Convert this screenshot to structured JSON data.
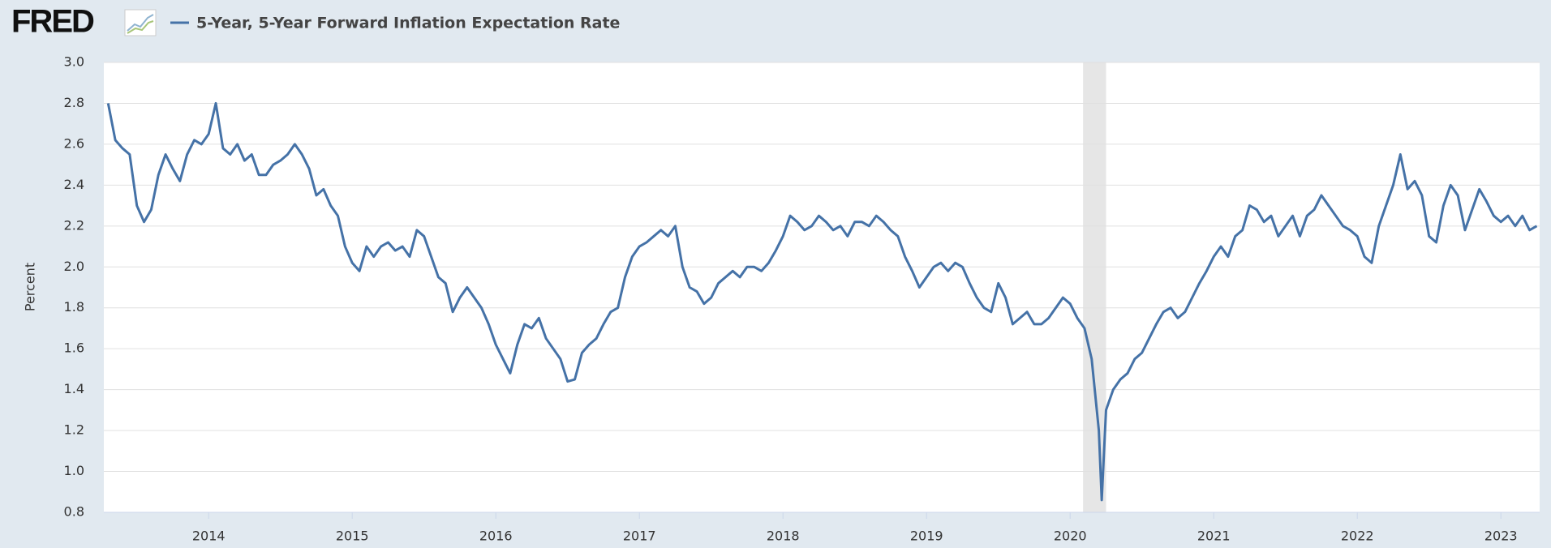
{
  "chart_data": {
    "type": "line",
    "logo": "FRED",
    "title": "5-Year, 5-Year Forward Inflation Expectation Rate",
    "ylabel": "Percent",
    "x": [
      2013.3,
      2013.35,
      2013.4,
      2013.45,
      2013.5,
      2013.55,
      2013.6,
      2013.65,
      2013.7,
      2013.75,
      2013.8,
      2013.85,
      2013.9,
      2013.95,
      2014.0,
      2014.05,
      2014.1,
      2014.15,
      2014.2,
      2014.25,
      2014.3,
      2014.35,
      2014.4,
      2014.45,
      2014.5,
      2014.55,
      2014.6,
      2014.65,
      2014.7,
      2014.75,
      2014.8,
      2014.85,
      2014.9,
      2014.95,
      2015.0,
      2015.05,
      2015.1,
      2015.15,
      2015.2,
      2015.25,
      2015.3,
      2015.35,
      2015.4,
      2015.45,
      2015.5,
      2015.55,
      2015.6,
      2015.65,
      2015.7,
      2015.75,
      2015.8,
      2015.85,
      2015.9,
      2015.95,
      2016.0,
      2016.05,
      2016.1,
      2016.15,
      2016.2,
      2016.25,
      2016.3,
      2016.35,
      2016.4,
      2016.45,
      2016.5,
      2016.55,
      2016.6,
      2016.65,
      2016.7,
      2016.75,
      2016.8,
      2016.85,
      2016.9,
      2016.95,
      2017.0,
      2017.05,
      2017.1,
      2017.15,
      2017.2,
      2017.25,
      2017.3,
      2017.35,
      2017.4,
      2017.45,
      2017.5,
      2017.55,
      2017.6,
      2017.65,
      2017.7,
      2017.75,
      2017.8,
      2017.85,
      2017.9,
      2017.95,
      2018.0,
      2018.05,
      2018.1,
      2018.15,
      2018.2,
      2018.25,
      2018.3,
      2018.35,
      2018.4,
      2018.45,
      2018.5,
      2018.55,
      2018.6,
      2018.65,
      2018.7,
      2018.75,
      2018.8,
      2018.85,
      2018.9,
      2018.95,
      2019.0,
      2019.05,
      2019.1,
      2019.15,
      2019.2,
      2019.25,
      2019.3,
      2019.35,
      2019.4,
      2019.45,
      2019.5,
      2019.55,
      2019.6,
      2019.65,
      2019.7,
      2019.75,
      2019.8,
      2019.85,
      2019.9,
      2019.95,
      2020.0,
      2020.05,
      2020.1,
      2020.15,
      2020.2,
      2020.22,
      2020.25,
      2020.3,
      2020.35,
      2020.4,
      2020.45,
      2020.5,
      2020.55,
      2020.6,
      2020.65,
      2020.7,
      2020.75,
      2020.8,
      2020.85,
      2020.9,
      2020.95,
      2021.0,
      2021.05,
      2021.1,
      2021.15,
      2021.2,
      2021.25,
      2021.3,
      2021.35,
      2021.4,
      2021.45,
      2021.5,
      2021.55,
      2021.6,
      2021.65,
      2021.7,
      2021.75,
      2021.8,
      2021.85,
      2021.9,
      2021.95,
      2022.0,
      2022.05,
      2022.1,
      2022.15,
      2022.2,
      2022.25,
      2022.3,
      2022.35,
      2022.4,
      2022.45,
      2022.5,
      2022.55,
      2022.6,
      2022.65,
      2022.7,
      2022.75,
      2022.8,
      2022.85,
      2022.9,
      2022.95,
      2023.0,
      2023.05,
      2023.1,
      2023.15,
      2023.2,
      2023.25
    ],
    "series": [
      {
        "name": "5-Year, 5-Year Forward Inflation Expectation Rate",
        "color": "#4572a7",
        "values": [
          2.8,
          2.62,
          2.58,
          2.55,
          2.3,
          2.22,
          2.28,
          2.45,
          2.55,
          2.48,
          2.42,
          2.55,
          2.62,
          2.6,
          2.65,
          2.8,
          2.58,
          2.55,
          2.6,
          2.52,
          2.55,
          2.45,
          2.45,
          2.5,
          2.52,
          2.55,
          2.6,
          2.55,
          2.48,
          2.35,
          2.38,
          2.3,
          2.25,
          2.1,
          2.02,
          1.98,
          2.1,
          2.05,
          2.1,
          2.12,
          2.08,
          2.1,
          2.05,
          2.18,
          2.15,
          2.05,
          1.95,
          1.92,
          1.78,
          1.85,
          1.9,
          1.85,
          1.8,
          1.72,
          1.62,
          1.55,
          1.48,
          1.62,
          1.72,
          1.7,
          1.75,
          1.65,
          1.6,
          1.55,
          1.44,
          1.45,
          1.58,
          1.62,
          1.65,
          1.72,
          1.78,
          1.8,
          1.95,
          2.05,
          2.1,
          2.12,
          2.15,
          2.18,
          2.15,
          2.2,
          2.0,
          1.9,
          1.88,
          1.82,
          1.85,
          1.92,
          1.95,
          1.98,
          1.95,
          2.0,
          2.0,
          1.98,
          2.02,
          2.08,
          2.15,
          2.25,
          2.22,
          2.18,
          2.2,
          2.25,
          2.22,
          2.18,
          2.2,
          2.15,
          2.22,
          2.22,
          2.2,
          2.25,
          2.22,
          2.18,
          2.15,
          2.05,
          1.98,
          1.9,
          1.95,
          2.0,
          2.02,
          1.98,
          2.02,
          2.0,
          1.92,
          1.85,
          1.8,
          1.78,
          1.92,
          1.85,
          1.72,
          1.75,
          1.78,
          1.72,
          1.72,
          1.75,
          1.8,
          1.85,
          1.82,
          1.75,
          1.7,
          1.55,
          1.2,
          0.86,
          1.3,
          1.4,
          1.45,
          1.48,
          1.55,
          1.58,
          1.65,
          1.72,
          1.78,
          1.8,
          1.75,
          1.78,
          1.85,
          1.92,
          1.98,
          2.05,
          2.1,
          2.05,
          2.15,
          2.18,
          2.3,
          2.28,
          2.22,
          2.25,
          2.15,
          2.2,
          2.25,
          2.15,
          2.25,
          2.28,
          2.35,
          2.3,
          2.25,
          2.2,
          2.18,
          2.15,
          2.05,
          2.02,
          2.2,
          2.3,
          2.4,
          2.55,
          2.38,
          2.42,
          2.35,
          2.15,
          2.12,
          2.3,
          2.4,
          2.35,
          2.18,
          2.28,
          2.38,
          2.32,
          2.25,
          2.22,
          2.25,
          2.2,
          2.25,
          2.18,
          2.2
        ]
      }
    ],
    "recessions": [
      [
        2020.09,
        2020.25
      ]
    ],
    "xlim": [
      2013.27,
      2023.27
    ],
    "xticks": [
      2014,
      2015,
      2016,
      2017,
      2018,
      2019,
      2020,
      2021,
      2022,
      2023
    ],
    "ylim": [
      0.8,
      3.0
    ],
    "yticks": [
      0.8,
      {
        "value": 1,
        "label": "1.0"
      },
      1.2,
      1.4,
      1.6,
      1.8,
      {
        "value": 2,
        "label": "2.0"
      },
      2.2,
      2.4,
      2.6,
      2.8,
      {
        "value": 3,
        "label": "3.0"
      }
    ],
    "grid": true
  }
}
